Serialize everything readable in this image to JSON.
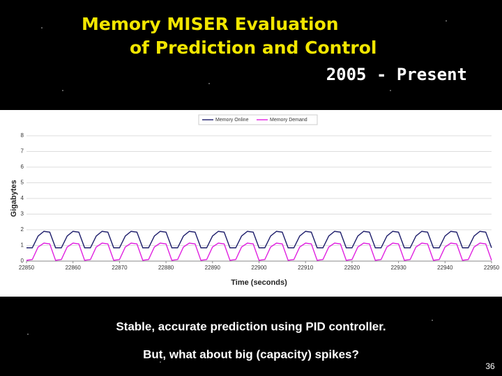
{
  "slide": {
    "title_line1": "Memory MISER Evaluation",
    "title_line2": "of Prediction and Control",
    "period": "2005 - Present",
    "bullets": [
      "Stable, accurate prediction using PID controller.",
      "But, what about big (capacity) spikes?"
    ],
    "page_number": "36"
  },
  "chart_data": {
    "type": "line",
    "x_label": "Time (seconds)",
    "y_label": "Gigabytes",
    "legend": "top",
    "grid": true,
    "xlim": [
      22850,
      22950
    ],
    "xticks": [
      22850,
      22860,
      22870,
      22880,
      22890,
      22900,
      22910,
      22920,
      22930,
      22940,
      22950
    ],
    "ylim": [
      0,
      8
    ],
    "yticks": [
      0,
      1,
      2,
      3,
      4,
      5,
      6,
      7,
      8
    ],
    "x": [
      22850,
      22851.25,
      22852.5,
      22853.75,
      22855,
      22856.25,
      22857.5,
      22858.75,
      22860,
      22861.25,
      22862.5,
      22863.75,
      22865,
      22866.25,
      22867.5,
      22868.75,
      22870,
      22871.25,
      22872.5,
      22873.75,
      22875,
      22876.25,
      22877.5,
      22878.75,
      22880,
      22881.25,
      22882.5,
      22883.75,
      22885,
      22886.25,
      22887.5,
      22888.75,
      22890,
      22891.25,
      22892.5,
      22893.75,
      22895,
      22896.25,
      22897.5,
      22898.75,
      22900,
      22901.25,
      22902.5,
      22903.75,
      22905,
      22906.25,
      22907.5,
      22908.75,
      22910,
      22911.25,
      22912.5,
      22913.75,
      22915,
      22916.25,
      22917.5,
      22918.75,
      22920,
      22921.25,
      22922.5,
      22923.75,
      22925,
      22926.25,
      22927.5,
      22928.75,
      22930,
      22931.25,
      22932.5,
      22933.75,
      22935,
      22936.25,
      22937.5,
      22938.75,
      22940,
      22941.25,
      22942.5,
      22943.75,
      22945,
      22946.25,
      22947.5,
      22948.75,
      22950
    ],
    "series": [
      {
        "name": "Memory Online",
        "color": "#1c1c6a",
        "values": [
          0.85,
          0.85,
          1.6,
          1.9,
          1.85,
          0.85,
          0.85,
          1.6,
          1.9,
          1.85,
          0.85,
          0.85,
          1.6,
          1.9,
          1.85,
          0.85,
          0.85,
          1.6,
          1.9,
          1.85,
          0.85,
          0.85,
          1.6,
          1.9,
          1.85,
          0.85,
          0.85,
          1.6,
          1.9,
          1.85,
          0.85,
          0.85,
          1.6,
          1.9,
          1.85,
          0.85,
          0.85,
          1.6,
          1.9,
          1.85,
          0.85,
          0.85,
          1.6,
          1.9,
          1.85,
          0.85,
          0.85,
          1.6,
          1.9,
          1.85,
          0.85,
          0.85,
          1.6,
          1.9,
          1.85,
          0.85,
          0.85,
          1.6,
          1.9,
          1.85,
          0.85,
          0.85,
          1.6,
          1.9,
          1.85,
          0.85,
          0.85,
          1.6,
          1.9,
          1.85,
          0.85,
          0.85,
          1.6,
          1.9,
          1.85,
          0.85,
          0.85,
          1.6,
          1.9,
          1.85,
          0.85
        ]
      },
      {
        "name": "Memory Demand",
        "color": "#e020e0",
        "values": [
          0.05,
          0.1,
          0.9,
          1.15,
          1.1,
          0.05,
          0.1,
          0.9,
          1.15,
          1.1,
          0.05,
          0.1,
          0.9,
          1.15,
          1.1,
          0.05,
          0.1,
          0.9,
          1.15,
          1.1,
          0.05,
          0.1,
          0.9,
          1.15,
          1.1,
          0.05,
          0.1,
          0.9,
          1.15,
          1.1,
          0.05,
          0.1,
          0.9,
          1.15,
          1.1,
          0.05,
          0.1,
          0.9,
          1.15,
          1.1,
          0.05,
          0.1,
          0.9,
          1.15,
          1.1,
          0.05,
          0.1,
          0.9,
          1.15,
          1.1,
          0.05,
          0.1,
          0.9,
          1.15,
          1.1,
          0.05,
          0.1,
          0.9,
          1.15,
          1.1,
          0.05,
          0.1,
          0.9,
          1.15,
          1.1,
          0.05,
          0.1,
          0.9,
          1.15,
          1.1,
          0.05,
          0.1,
          0.9,
          1.15,
          1.1,
          0.05,
          0.1,
          0.9,
          1.15,
          1.1,
          0.05
        ]
      }
    ]
  }
}
